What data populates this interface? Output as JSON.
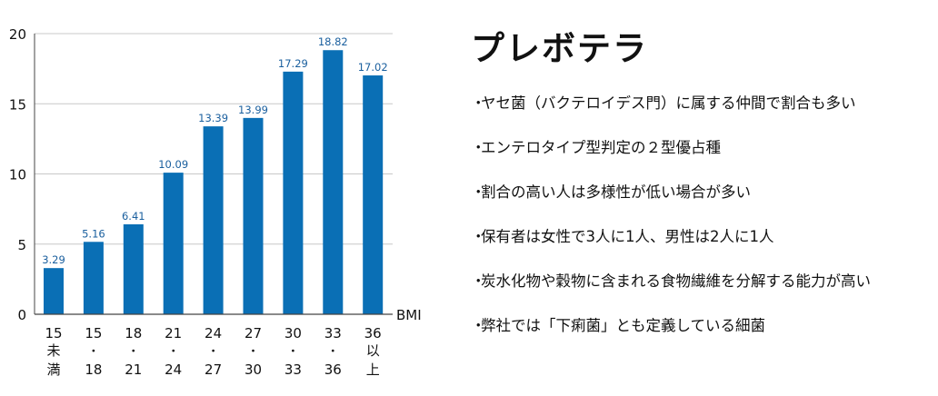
{
  "chart_data": {
    "type": "bar",
    "categories": [
      [
        "15",
        "未",
        "満"
      ],
      [
        "15",
        "・",
        "18"
      ],
      [
        "18",
        "・",
        "21"
      ],
      [
        "21",
        "・",
        "24"
      ],
      [
        "24",
        "・",
        "27"
      ],
      [
        "27",
        "・",
        "30"
      ],
      [
        "30",
        "・",
        "33"
      ],
      [
        "33",
        "・",
        "36"
      ],
      [
        "36",
        "以",
        "上"
      ]
    ],
    "values": [
      3.29,
      5.16,
      6.41,
      10.09,
      13.39,
      13.99,
      17.29,
      18.82,
      17.02
    ],
    "value_labels": [
      "3.29",
      "5.16",
      "6.41",
      "10.09",
      "13.39",
      "13.99",
      "17.29",
      "18.82",
      "17.02"
    ],
    "ylim": [
      0,
      20
    ],
    "yticks": [
      0,
      5,
      10,
      15,
      20
    ],
    "xlabel": "BMI",
    "ylabel": "",
    "title": "",
    "grid": true,
    "colors": {
      "bar": "#0a6fb5",
      "value_label": "#1a5f9e",
      "grid": "#c8c8c8",
      "axis": "#444444",
      "text": "#111111"
    }
  },
  "panel": {
    "title": "プレボテラ",
    "bullet": "・",
    "points": [
      "ヤセ菌（バクテロイデス門）に属する仲間で割合も多い",
      "エンテロタイプ型判定の２型優占種",
      "割合の高い人は多様性が低い場合が多い",
      "保有者は女性で3人に1人、男性は2人に1人",
      "炭水化物や穀物に含まれる食物繊維を分解する能力が高い",
      "弊社では「下痢菌」とも定義している細菌"
    ]
  }
}
